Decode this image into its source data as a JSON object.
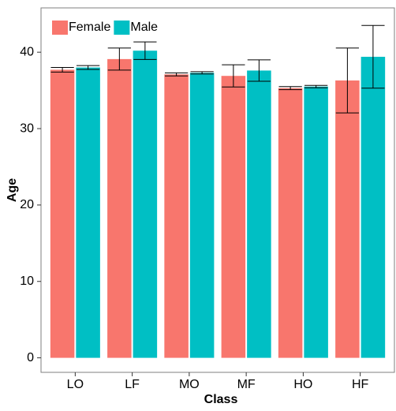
{
  "chart_data": {
    "type": "bar",
    "x_label": "Class",
    "y_label": "Age",
    "categories": [
      "LO",
      "LF",
      "MO",
      "MF",
      "HO",
      "HF"
    ],
    "series": [
      {
        "name": "Female",
        "color": "#F8766D",
        "values": [
          37.7,
          39.1,
          37.1,
          36.9,
          35.3,
          36.3
        ],
        "errors": [
          0.3,
          1.45,
          0.2,
          1.45,
          0.2,
          4.25
        ]
      },
      {
        "name": "Male",
        "color": "#00BFC4",
        "values": [
          38.0,
          40.2,
          37.3,
          37.6,
          35.5,
          39.4
        ],
        "errors": [
          0.25,
          1.15,
          0.15,
          1.4,
          0.15,
          4.1
        ]
      }
    ],
    "ylim": [
      -1.9,
      45.8
    ],
    "yticks": [
      0,
      10,
      20,
      30,
      40
    ],
    "legend": "top-left"
  }
}
